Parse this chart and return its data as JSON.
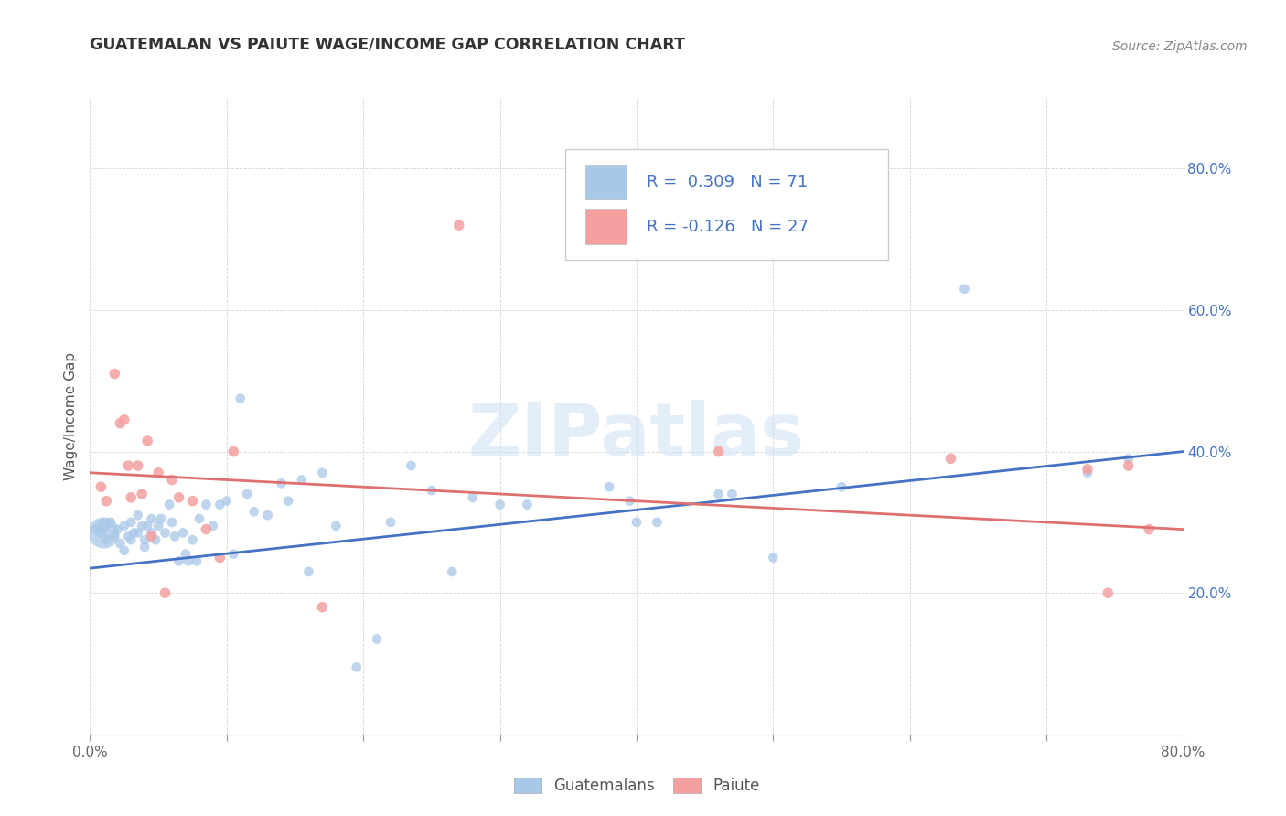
{
  "title": "GUATEMALAN VS PAIUTE WAGE/INCOME GAP CORRELATION CHART",
  "source": "Source: ZipAtlas.com",
  "ylabel": "Wage/Income Gap",
  "xlim": [
    0.0,
    0.8
  ],
  "ylim": [
    0.0,
    0.9
  ],
  "x_tick_positions": [
    0.0,
    0.1,
    0.2,
    0.3,
    0.4,
    0.5,
    0.6,
    0.7,
    0.8
  ],
  "x_tick_labels": [
    "0.0%",
    "",
    "",
    "",
    "",
    "",
    "",
    "",
    "80.0%"
  ],
  "y_tick_positions": [
    0.2,
    0.4,
    0.6,
    0.8
  ],
  "y_tick_labels": [
    "20.0%",
    "40.0%",
    "60.0%",
    "80.0%"
  ],
  "watermark": "ZIPatlas",
  "legend_line1": "R =  0.309   N = 71",
  "legend_line2": "R = -0.126   N = 27",
  "blue_color": "#a8c8e8",
  "pink_color": "#f4a0a0",
  "line_blue": "#4472c4",
  "line_pink": "#e07070",
  "guatemalans_label": "Guatemalans",
  "paiute_label": "Paiute",
  "blue_scatter_x": [
    0.005,
    0.008,
    0.01,
    0.012,
    0.015,
    0.018,
    0.02,
    0.022,
    0.025,
    0.025,
    0.028,
    0.03,
    0.03,
    0.032,
    0.035,
    0.035,
    0.038,
    0.04,
    0.04,
    0.042,
    0.045,
    0.045,
    0.048,
    0.05,
    0.052,
    0.055,
    0.058,
    0.06,
    0.062,
    0.065,
    0.068,
    0.07,
    0.072,
    0.075,
    0.078,
    0.08,
    0.085,
    0.09,
    0.095,
    0.1,
    0.105,
    0.11,
    0.115,
    0.12,
    0.13,
    0.14,
    0.145,
    0.155,
    0.16,
    0.17,
    0.18,
    0.195,
    0.21,
    0.22,
    0.235,
    0.25,
    0.265,
    0.28,
    0.3,
    0.32,
    0.38,
    0.395,
    0.4,
    0.415,
    0.46,
    0.47,
    0.5,
    0.55,
    0.64,
    0.73,
    0.76
  ],
  "blue_scatter_y": [
    0.29,
    0.285,
    0.295,
    0.275,
    0.3,
    0.28,
    0.29,
    0.27,
    0.26,
    0.295,
    0.28,
    0.275,
    0.3,
    0.285,
    0.31,
    0.285,
    0.295,
    0.265,
    0.275,
    0.295,
    0.285,
    0.305,
    0.275,
    0.295,
    0.305,
    0.285,
    0.325,
    0.3,
    0.28,
    0.245,
    0.285,
    0.255,
    0.245,
    0.275,
    0.245,
    0.305,
    0.325,
    0.295,
    0.325,
    0.33,
    0.255,
    0.475,
    0.34,
    0.315,
    0.31,
    0.355,
    0.33,
    0.36,
    0.23,
    0.37,
    0.295,
    0.095,
    0.135,
    0.3,
    0.38,
    0.345,
    0.23,
    0.335,
    0.325,
    0.325,
    0.35,
    0.33,
    0.3,
    0.3,
    0.34,
    0.34,
    0.25,
    0.35,
    0.63,
    0.37,
    0.39
  ],
  "blue_scatter_sizes": [
    80,
    60,
    120,
    60,
    60,
    60,
    60,
    60,
    60,
    60,
    60,
    60,
    60,
    60,
    60,
    60,
    60,
    60,
    60,
    60,
    60,
    60,
    60,
    60,
    60,
    60,
    60,
    60,
    60,
    60,
    60,
    60,
    60,
    60,
    60,
    60,
    60,
    60,
    60,
    60,
    60,
    60,
    60,
    60,
    60,
    60,
    60,
    60,
    60,
    60,
    60,
    60,
    60,
    60,
    60,
    60,
    60,
    60,
    60,
    60,
    60,
    60,
    60,
    60,
    60,
    60,
    60,
    60,
    60,
    60,
    60
  ],
  "blue_big_cluster_x": [
    0.01
  ],
  "blue_big_cluster_y": [
    0.285
  ],
  "blue_big_cluster_s": [
    600
  ],
  "pink_scatter_x": [
    0.008,
    0.012,
    0.018,
    0.022,
    0.025,
    0.028,
    0.03,
    0.035,
    0.038,
    0.042,
    0.045,
    0.05,
    0.055,
    0.06,
    0.065,
    0.075,
    0.085,
    0.095,
    0.105,
    0.17,
    0.27,
    0.46,
    0.63,
    0.73,
    0.745,
    0.76,
    0.775
  ],
  "pink_scatter_y": [
    0.35,
    0.33,
    0.51,
    0.44,
    0.445,
    0.38,
    0.335,
    0.38,
    0.34,
    0.415,
    0.28,
    0.37,
    0.2,
    0.36,
    0.335,
    0.33,
    0.29,
    0.25,
    0.4,
    0.18,
    0.72,
    0.4,
    0.39,
    0.375,
    0.2,
    0.38,
    0.29
  ],
  "blue_line_x": [
    0.0,
    0.8
  ],
  "blue_line_y": [
    0.235,
    0.4
  ],
  "pink_line_x": [
    0.0,
    0.8
  ],
  "pink_line_y": [
    0.37,
    0.29
  ]
}
